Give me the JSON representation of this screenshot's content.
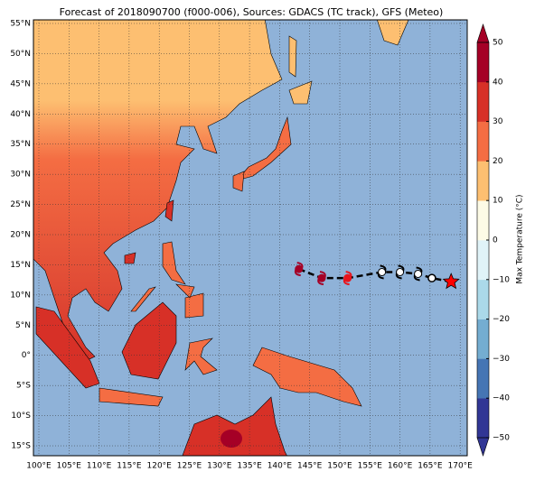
{
  "title": "Forecast of 2018090700 (f000-006), Sources: GDACS (TC track), GFS (Meteo)",
  "lat_ticks": [
    {
      "value": 55,
      "label": "55°N"
    },
    {
      "value": 50,
      "label": "50°N"
    },
    {
      "value": 45,
      "label": "45°N"
    },
    {
      "value": 40,
      "label": "40°N"
    },
    {
      "value": 35,
      "label": "35°N"
    },
    {
      "value": 30,
      "label": "30°N"
    },
    {
      "value": 25,
      "label": "25°N"
    },
    {
      "value": 20,
      "label": "20°N"
    },
    {
      "value": 15,
      "label": "15°N"
    },
    {
      "value": 10,
      "label": "10°N"
    },
    {
      "value": 5,
      "label": "5°N"
    },
    {
      "value": 0,
      "label": "0°"
    },
    {
      "value": -5,
      "label": "5°S"
    },
    {
      "value": -10,
      "label": "10°S"
    },
    {
      "value": -15,
      "label": "15°S"
    }
  ],
  "lon_ticks": [
    {
      "value": 100,
      "label": "100°E"
    },
    {
      "value": 105,
      "label": "105°E"
    },
    {
      "value": 110,
      "label": "110°E"
    },
    {
      "value": 115,
      "label": "115°E"
    },
    {
      "value": 120,
      "label": "120°E"
    },
    {
      "value": 125,
      "label": "125°E"
    },
    {
      "value": 130,
      "label": "130°E"
    },
    {
      "value": 135,
      "label": "135°E"
    },
    {
      "value": 140,
      "label": "140°E"
    },
    {
      "value": 145,
      "label": "145°E"
    },
    {
      "value": 150,
      "label": "150°E"
    },
    {
      "value": 155,
      "label": "155°E"
    },
    {
      "value": 160,
      "label": "160°E"
    },
    {
      "value": 165,
      "label": "165°E"
    },
    {
      "value": 170,
      "label": "170°E"
    }
  ],
  "colorbar": {
    "label": "Max Temperature (°C)",
    "lim": [
      -50,
      50
    ],
    "ticks": [
      {
        "value": -50,
        "label": "−50"
      },
      {
        "value": -40,
        "label": "−40"
      },
      {
        "value": -30,
        "label": "−30"
      },
      {
        "value": -20,
        "label": "−20"
      },
      {
        "value": -10,
        "label": "−10"
      },
      0,
      10,
      20,
      30,
      40,
      50
    ],
    "colors": [
      "#313695",
      "#4575b4",
      "#74add1",
      "#abd9e9",
      "#e0f3f8",
      "#fdfbe6",
      "#fdbf71",
      "#f46d43",
      "#d73027",
      "#a50026"
    ]
  },
  "track": [
    {
      "lon": 143.2,
      "lat": 14.3,
      "color": "#a50026"
    },
    {
      "lon": 147.0,
      "lat": 12.8,
      "color": "#a50026"
    },
    {
      "lon": 151.3,
      "lat": 12.8,
      "color": "#e8141c"
    },
    {
      "lon": 157.0,
      "lat": 13.8,
      "color": "#ffffff"
    },
    {
      "lon": 160.0,
      "lat": 13.8,
      "color": "#ffffff"
    },
    {
      "lon": 163.0,
      "lat": 13.5,
      "color": "#ffffff"
    },
    {
      "lon": 165.3,
      "lat": 12.8,
      "color": "#ffffff"
    },
    {
      "lon": 168.5,
      "lat": 12.2,
      "color": "#ff0000"
    }
  ]
}
